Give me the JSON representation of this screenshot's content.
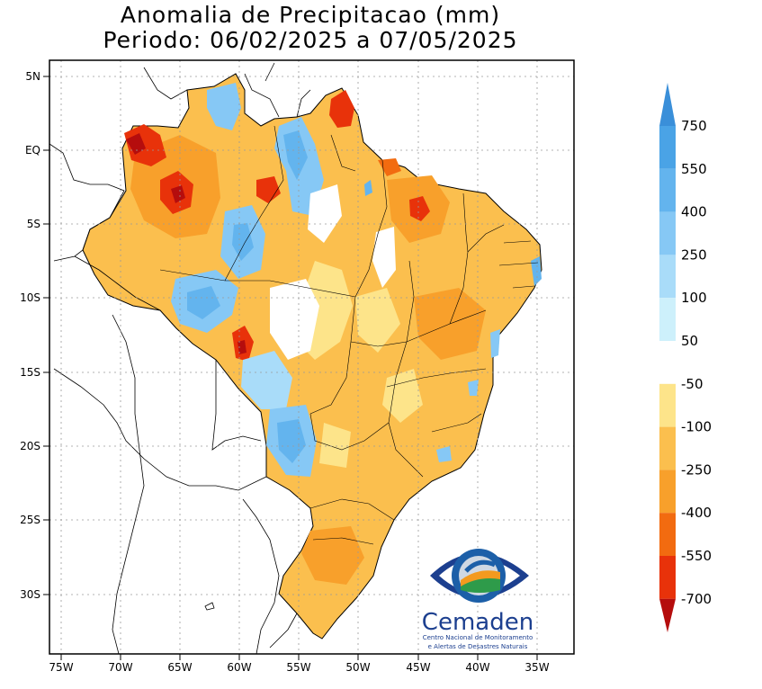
{
  "title": {
    "line1": "Anomalia de Precipitacao (mm)",
    "line2": "Periodo: 06/02/2025 a 07/05/2025"
  },
  "map": {
    "lat_labels": [
      "5N",
      "EQ",
      "5S",
      "10S",
      "15S",
      "20S",
      "25S",
      "30S"
    ],
    "lon_labels": [
      "75W",
      "70W",
      "65W",
      "60W",
      "55W",
      "50W",
      "45W",
      "40W",
      "35W"
    ]
  },
  "legend": {
    "labels": [
      "750",
      "550",
      "400",
      "250",
      "100",
      "50",
      "-50",
      "-100",
      "-250",
      "-400",
      "-550",
      "-700"
    ],
    "colors": [
      "#3a8fd9",
      "#4aa3e6",
      "#63b4ee",
      "#86c8f5",
      "#a9dcf9",
      "#cdf0fb",
      "#ffffff",
      "#fde48a",
      "#fbbf4e",
      "#f8a02b",
      "#f26b10",
      "#e8320a",
      "#b50d0d"
    ]
  },
  "logo": {
    "name": "Cemaden",
    "line1": "Centro Nacional de Monitoramento",
    "line2": "e Alertas de Desastres Naturais"
  }
}
